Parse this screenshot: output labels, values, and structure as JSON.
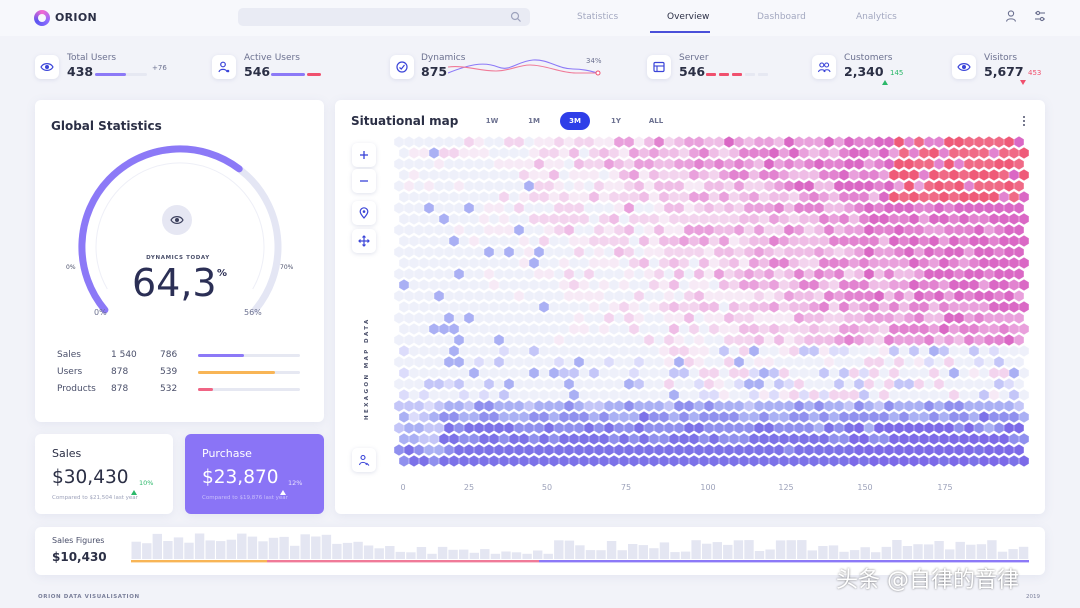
{
  "app": {
    "name": "ORION"
  },
  "nav": [
    {
      "label": "Statistics",
      "active": false
    },
    {
      "label": "Overview",
      "active": true
    },
    {
      "label": "Dashboard",
      "active": false
    },
    {
      "label": "Analytics",
      "active": false
    }
  ],
  "stats": {
    "total_users": {
      "label": "Total Users",
      "value": "438",
      "delta": "+76",
      "progress": 0.6
    },
    "active_users": {
      "label": "Active Users",
      "value": "546",
      "progress": 0.5
    },
    "dynamics": {
      "label": "Dynamics",
      "value": "875",
      "percent": "34%"
    },
    "server": {
      "label": "Server",
      "value": "546"
    },
    "customers": {
      "label": "Customers",
      "value": "2,340",
      "delta": "145",
      "delta_dir": "up"
    },
    "visitors": {
      "label": "Visitors",
      "value": "5,677",
      "delta": "453",
      "delta_dir": "down"
    }
  },
  "global_statistics": {
    "title": "Global Statistics",
    "gauge": {
      "caption": "DYNAMICS TODAY",
      "value": "64,3",
      "unit": "%",
      "fraction": 0.643,
      "secondary_fraction": 0.56,
      "label_left_outer": "0%",
      "label_right_outer": "70%",
      "label_left": "0%",
      "label_right": "56%"
    },
    "rows": [
      {
        "label": "Sales",
        "v1": "1 540",
        "v2": "786",
        "progress": 0.45,
        "color": "#8c79f7"
      },
      {
        "label": "Users",
        "v1": "878",
        "v2": "539",
        "progress": 0.75,
        "color": "#f8b556"
      },
      {
        "label": "Products",
        "v1": "878",
        "v2": "532",
        "progress": 0.15,
        "color": "#f06484"
      }
    ]
  },
  "sales": {
    "title": "Sales",
    "value": "$30,430",
    "delta": "10%",
    "compare": "Compared to $21,504 last year"
  },
  "purchase": {
    "title": "Purchase",
    "value": "$23,870",
    "delta": "12%",
    "compare": "Compared to $19,876 last year"
  },
  "map": {
    "title": "Situational map",
    "ranges": [
      "1W",
      "1M",
      "3M",
      "1Y",
      "ALL"
    ],
    "active_range": "3M",
    "side_label": "HEXAGON MAP DATA",
    "x_ticks": [
      "0",
      "25",
      "50",
      "75",
      "100",
      "125",
      "150",
      "175"
    ]
  },
  "sales_figures": {
    "title": "Sales Figures",
    "value": "$10,430"
  },
  "footer": {
    "left": "ORION DATA VISUALISATION",
    "right": "2019"
  },
  "watermark": "头条 @自律的音律",
  "colors": {
    "accent": "#2e3ee8",
    "purple": "#8c79f7",
    "pink": "#e468c8",
    "red": "#f0506e",
    "green": "#2cb86a"
  }
}
